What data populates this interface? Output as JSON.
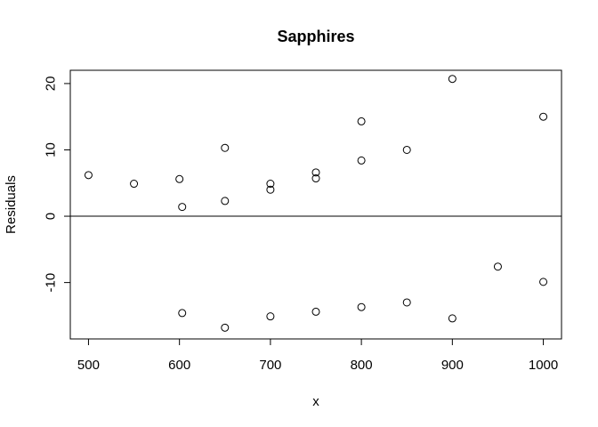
{
  "chart_data": {
    "type": "scatter",
    "title": "Sapphires",
    "xlabel": "x",
    "ylabel": "Residuals",
    "xlim": [
      480,
      1020
    ],
    "ylim": [
      -18.5,
      22
    ],
    "xticks": [
      500,
      600,
      700,
      800,
      900,
      1000
    ],
    "yticks": [
      -10,
      0,
      10,
      20
    ],
    "hline": 0,
    "grid": false,
    "marker": "open-circle",
    "points": [
      {
        "x": 500,
        "y": 6.2
      },
      {
        "x": 550,
        "y": 4.9
      },
      {
        "x": 600,
        "y": 5.6
      },
      {
        "x": 603,
        "y": 1.4
      },
      {
        "x": 603,
        "y": -14.6
      },
      {
        "x": 650,
        "y": 10.3
      },
      {
        "x": 650,
        "y": 2.3
      },
      {
        "x": 650,
        "y": -16.8
      },
      {
        "x": 700,
        "y": 4.9
      },
      {
        "x": 700,
        "y": 4.0
      },
      {
        "x": 700,
        "y": -15.1
      },
      {
        "x": 750,
        "y": 6.6
      },
      {
        "x": 750,
        "y": 5.7
      },
      {
        "x": 750,
        "y": -14.4
      },
      {
        "x": 800,
        "y": 14.3
      },
      {
        "x": 800,
        "y": 8.4
      },
      {
        "x": 800,
        "y": -13.7
      },
      {
        "x": 850,
        "y": 10.0
      },
      {
        "x": 850,
        "y": -13.0
      },
      {
        "x": 900,
        "y": 20.7
      },
      {
        "x": 900,
        "y": -15.4
      },
      {
        "x": 950,
        "y": -7.6
      },
      {
        "x": 1000,
        "y": 15.0
      },
      {
        "x": 1000,
        "y": -9.9
      }
    ]
  }
}
